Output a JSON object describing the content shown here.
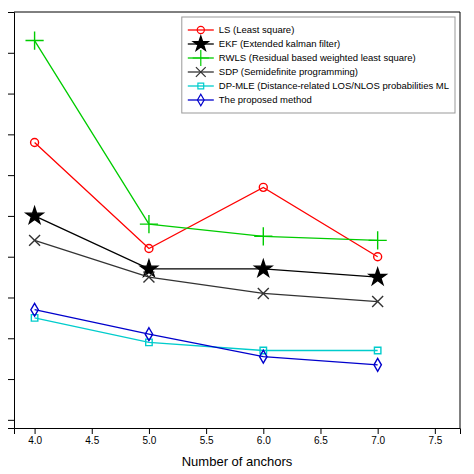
{
  "chart_data": {
    "type": "line",
    "x_label": "Number of anchors",
    "x": [
      4,
      5,
      6,
      7
    ],
    "series": [
      {
        "name": "LS (Least square)",
        "color": "#ff0000",
        "marker": "circle-open",
        "values": [
          0.68,
          0.42,
          0.57,
          0.4
        ]
      },
      {
        "name": "EKF (Extended kalman filter)",
        "color": "#000000",
        "marker": "star",
        "values": [
          0.5,
          0.37,
          0.37,
          0.35
        ]
      },
      {
        "name": "RWLS (Residual based weighted least square)",
        "color": "#00cc00",
        "marker": "plus",
        "values": [
          0.93,
          0.48,
          0.45,
          0.44
        ]
      },
      {
        "name": "SDP (Semidefinite programming)",
        "color": "#333333",
        "marker": "x",
        "values": [
          0.44,
          0.35,
          0.31,
          0.29
        ]
      },
      {
        "name": "DP-MLE (Distance-related LOS/NLOS probabilities ML",
        "color": "#00cccc",
        "marker": "square-open",
        "values": [
          0.25,
          0.19,
          0.17,
          0.17
        ]
      },
      {
        "name": "The proposed method",
        "color": "#0000cc",
        "marker": "diamond-open",
        "values": [
          0.27,
          0.21,
          0.155,
          0.135
        ]
      }
    ],
    "xlim": [
      3.82,
      7.72
    ],
    "xticks": [
      {
        "value": 4,
        "label": "4.0"
      },
      {
        "value": 4.5,
        "label": "4.5"
      },
      {
        "value": 5,
        "label": "5.0"
      },
      {
        "value": 5.5,
        "label": "5.5"
      },
      {
        "value": 6,
        "label": "6.0"
      },
      {
        "value": 6.5,
        "label": "6.5"
      },
      {
        "value": 7,
        "label": "7.0"
      },
      {
        "value": 7.5,
        "label": "7.5"
      }
    ],
    "ylim": [
      -0.02,
      1
    ],
    "yticks": [
      0,
      0.1,
      0.2,
      0.3,
      0.4,
      0.5,
      0.6,
      0.7,
      0.8,
      0.9,
      1
    ],
    "tick_labels": "x",
    "grid": false,
    "legend": "upper-right"
  }
}
